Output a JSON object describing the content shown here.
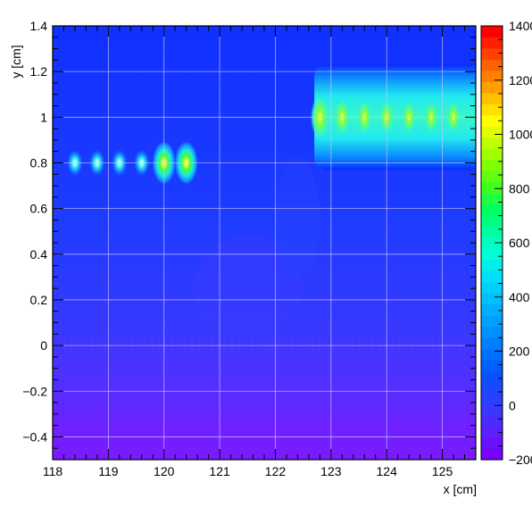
{
  "chart_data": {
    "type": "heatmap",
    "xlabel": "x [cm]",
    "ylabel": "y [cm]",
    "xlim": [
      118,
      125.6
    ],
    "ylim": [
      -0.5,
      1.4
    ],
    "grid": true,
    "x_ticks": [
      {
        "value": 118,
        "label": "118"
      },
      {
        "value": 119,
        "label": "119"
      },
      {
        "value": 120,
        "label": "120"
      },
      {
        "value": 121,
        "label": "121"
      },
      {
        "value": 122,
        "label": "122"
      },
      {
        "value": 123,
        "label": "123"
      },
      {
        "value": 124,
        "label": "124"
      },
      {
        "value": 125,
        "label": "125"
      }
    ],
    "y_ticks": [
      {
        "value": -0.4,
        "label": "−0.4"
      },
      {
        "value": -0.2,
        "label": "−0.2"
      },
      {
        "value": 0,
        "label": "0"
      },
      {
        "value": 0.2,
        "label": "0.2"
      },
      {
        "value": 0.4,
        "label": "0.4"
      },
      {
        "value": 0.6,
        "label": "0.6"
      },
      {
        "value": 0.8,
        "label": "0.8"
      },
      {
        "value": 1,
        "label": "1"
      },
      {
        "value": 1.2,
        "label": "1.2"
      },
      {
        "value": 1.4,
        "label": "1.4"
      }
    ],
    "colorbar": {
      "min": -200,
      "max": 1400,
      "ticks": [
        {
          "value": -200,
          "label": "−200"
        },
        {
          "value": 0,
          "label": "0"
        },
        {
          "value": 200,
          "label": "200"
        },
        {
          "value": 400,
          "label": "400"
        },
        {
          "value": 600,
          "label": "600"
        },
        {
          "value": 800,
          "label": "800"
        },
        {
          "value": 1000,
          "label": "1000"
        },
        {
          "value": 1200,
          "label": "1200"
        },
        {
          "value": 1400,
          "label": "1400"
        }
      ]
    },
    "features": {
      "left_peaks": {
        "y": 0.8,
        "x": [
          118.4,
          118.8,
          119.2,
          119.6,
          120.0,
          120.4
        ],
        "peak_values": [
          430,
          460,
          480,
          500,
          900,
          1100
        ]
      },
      "right_band": {
        "x_range": [
          122.7,
          125.6
        ],
        "y_range": [
          0.8,
          1.2
        ],
        "center_y": 1.0,
        "base_value": 430,
        "peak_x": [
          122.8,
          123.2,
          123.6,
          124.0,
          124.4,
          124.8,
          125.2
        ],
        "peak_values": [
          1100,
          950,
          900,
          880,
          860,
          850,
          850
        ]
      }
    }
  }
}
